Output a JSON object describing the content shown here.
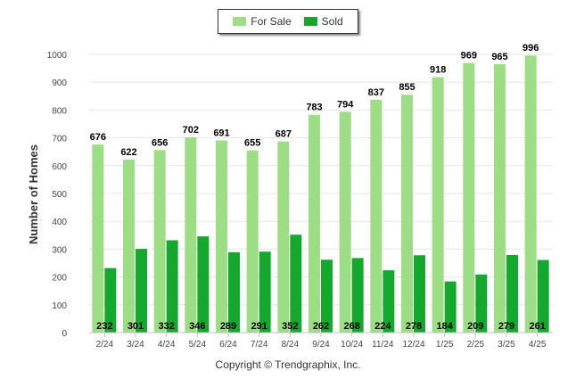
{
  "legend": {
    "items": [
      {
        "label": "For Sale",
        "color": "#9ddd86"
      },
      {
        "label": "Sold",
        "color": "#16a82e"
      }
    ]
  },
  "footer": {
    "copyright": "Copyright © Trendgraphix, Inc."
  },
  "chart_data": {
    "type": "bar",
    "ylabel": "Number of Homes",
    "xlabel": "",
    "ylim": [
      0,
      1000
    ],
    "ytick_step": 100,
    "grid": true,
    "legend_position": "top-center",
    "categories": [
      "2/24",
      "3/24",
      "4/24",
      "5/24",
      "6/24",
      "7/24",
      "8/24",
      "9/24",
      "10/24",
      "11/24",
      "12/24",
      "1/25",
      "2/25",
      "3/25",
      "4/25"
    ],
    "series": [
      {
        "name": "For Sale",
        "color": "#9ddd86",
        "values": [
          676,
          622,
          656,
          702,
          691,
          655,
          687,
          783,
          794,
          837,
          855,
          918,
          969,
          965,
          996
        ]
      },
      {
        "name": "Sold",
        "color": "#16a82e",
        "values": [
          232,
          301,
          332,
          346,
          289,
          291,
          352,
          262,
          268,
          224,
          278,
          184,
          209,
          279,
          261
        ]
      }
    ]
  }
}
